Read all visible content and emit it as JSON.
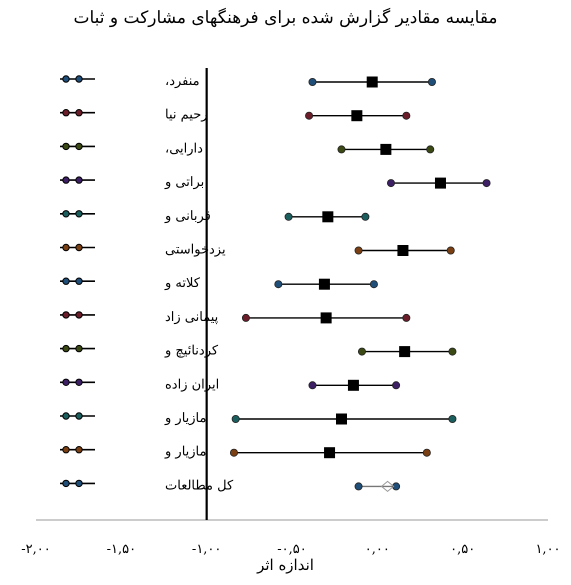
{
  "chart_data": {
    "type": "forest",
    "title": "مقایسه مقادیر گزارش شده برای فرهنگهای مشارکت  و ثبات",
    "xlabel": "اندازه اثر",
    "xlim": [
      -2.0,
      1.0
    ],
    "xticks": [
      -2.0,
      -1.5,
      -1.0,
      -0.5,
      0.0,
      0.5,
      1.0
    ],
    "xtick_labels": [
      "-۲,۰۰",
      "-۱,۵۰",
      "-۱,۰۰",
      "-۰,۵۰",
      "۰,۰۰",
      "۰,۵۰",
      "۱,۰۰"
    ],
    "reference_line": -1.0,
    "studies": [
      {
        "label": "منفرد،",
        "lower": -0.38,
        "estimate": -0.03,
        "upper": 0.32,
        "color": "#1f4e79"
      },
      {
        "label": "رحیم نیا",
        "lower": -0.4,
        "estimate": -0.12,
        "upper": 0.17,
        "color": "#6b1d2a"
      },
      {
        "label": "دارایی،",
        "lower": -0.21,
        "estimate": 0.05,
        "upper": 0.31,
        "color": "#3b4a14"
      },
      {
        "label": "براتی و",
        "lower": 0.08,
        "estimate": 0.37,
        "upper": 0.64,
        "color": "#3d1f66"
      },
      {
        "label": "قربانی و",
        "lower": -0.52,
        "estimate": -0.29,
        "upper": -0.07,
        "color": "#1b5e5e"
      },
      {
        "label": "یزدخواستی",
        "lower": -0.11,
        "estimate": 0.15,
        "upper": 0.43,
        "color": "#7a3f12"
      },
      {
        "label": "کلاته و",
        "lower": -0.58,
        "estimate": -0.31,
        "upper": -0.02,
        "color": "#1f4e79"
      },
      {
        "label": "پیمانی زاد",
        "lower": -0.77,
        "estimate": -0.3,
        "upper": 0.17,
        "color": "#6b1d2a"
      },
      {
        "label": "کردنائیچ و",
        "lower": -0.09,
        "estimate": 0.16,
        "upper": 0.44,
        "color": "#3b4a14"
      },
      {
        "label": "ایران زاده",
        "lower": -0.38,
        "estimate": -0.14,
        "upper": 0.11,
        "color": "#3d1f66"
      },
      {
        "label": "مازیار و",
        "lower": -0.83,
        "estimate": -0.21,
        "upper": 0.44,
        "color": "#1b5e5e"
      },
      {
        "label": "مازیار و",
        "lower": -0.84,
        "estimate": -0.28,
        "upper": 0.29,
        "color": "#7a3f12"
      },
      {
        "label": "کل مطالعات",
        "lower": -0.11,
        "estimate": 0.06,
        "upper": 0.11,
        "color": "#1f4e79",
        "summary": true
      }
    ]
  }
}
